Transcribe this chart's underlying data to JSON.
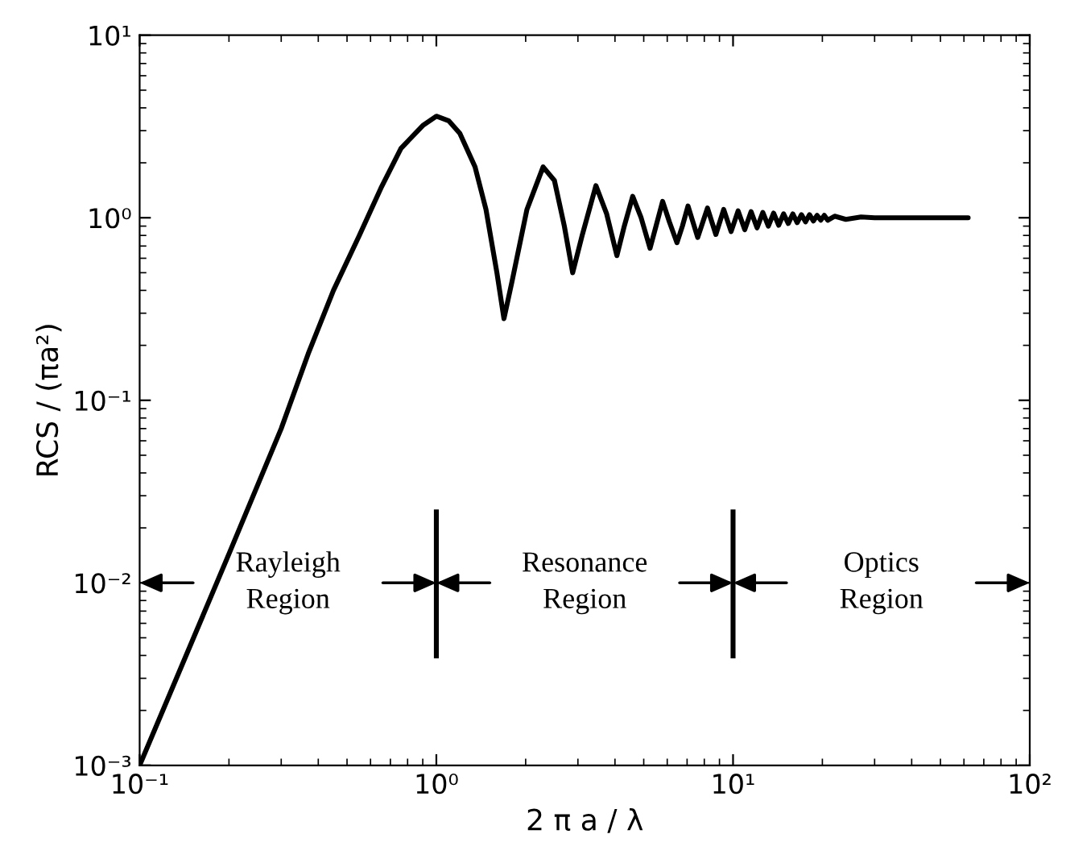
{
  "chart_data": {
    "type": "line",
    "xlabel": "2 π a / λ",
    "ylabel": "RCS / (πa²)",
    "log": "xy",
    "grid": false,
    "marker": "none",
    "line_style": "solid",
    "xlim": [
      0.1,
      100
    ],
    "ylim": [
      0.001,
      10
    ],
    "xticks": [
      {
        "value": 0.1,
        "label": "10⁻¹"
      },
      {
        "value": 1,
        "label": "10⁰"
      },
      {
        "value": 10,
        "label": "10¹"
      },
      {
        "value": 100,
        "label": "10²"
      }
    ],
    "yticks": [
      {
        "value": 0.001,
        "label": "10⁻³"
      },
      {
        "value": 0.01,
        "label": "10⁻²"
      },
      {
        "value": 0.1,
        "label": "10⁻¹"
      },
      {
        "value": 1,
        "label": "10⁰"
      },
      {
        "value": 10,
        "label": "10¹"
      }
    ],
    "series": [
      {
        "color": "#000000",
        "x": [
          0.1,
          0.2,
          0.3,
          0.37,
          0.45,
          0.55,
          0.65,
          0.76,
          0.9,
          1.0,
          1.1,
          1.2,
          1.35,
          1.47,
          1.6,
          1.69,
          1.8,
          2.02,
          2.29,
          2.5,
          2.7,
          2.88,
          3.1,
          3.45,
          3.75,
          4.06,
          4.3,
          4.59,
          4.9,
          5.25,
          5.5,
          5.79,
          6.1,
          6.47,
          6.75,
          7.05,
          7.6,
          8.2,
          8.75,
          9.3,
          9.85,
          10.4,
          10.95,
          11.5,
          12.05,
          12.6,
          13.15,
          13.7,
          14.25,
          14.8,
          15.35,
          15.9,
          16.45,
          17.0,
          17.55,
          18.1,
          18.65,
          19.2,
          19.75,
          20.3,
          20.85,
          22,
          24,
          27,
          30,
          40,
          62
        ],
        "values": [
          0.001,
          0.0144,
          0.07,
          0.18,
          0.4,
          0.8,
          1.45,
          2.4,
          3.2,
          3.6,
          3.4,
          2.9,
          1.9,
          1.11,
          0.5,
          0.28,
          0.45,
          1.11,
          1.9,
          1.6,
          0.9,
          0.5,
          0.8,
          1.5,
          1.05,
          0.62,
          0.9,
          1.31,
          1.0,
          0.68,
          0.9,
          1.23,
          0.95,
          0.73,
          0.9,
          1.16,
          0.78,
          1.13,
          0.81,
          1.11,
          0.84,
          1.09,
          0.86,
          1.08,
          0.88,
          1.07,
          0.9,
          1.06,
          0.91,
          1.05,
          0.93,
          1.05,
          0.94,
          1.04,
          0.95,
          1.04,
          0.96,
          1.03,
          0.97,
          1.03,
          0.97,
          1.02,
          0.98,
          1.01,
          1.0,
          1.0,
          1.0
        ]
      }
    ],
    "ref_lines": [
      {
        "axis": "x",
        "value": 1,
        "color": "#000000"
      },
      {
        "axis": "x",
        "value": 10,
        "color": "#000000"
      }
    ],
    "annotations": [
      "Rayleigh\nRegion",
      "Resonance\nRegion",
      "Optics\nRegion"
    ]
  }
}
